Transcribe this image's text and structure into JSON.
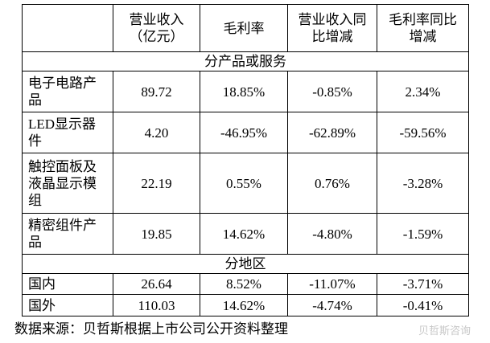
{
  "table": {
    "header": [
      "营业收入（亿元）",
      "毛利率",
      "营业收入同比增减",
      "毛利率同比增减"
    ],
    "rows": [
      [
        "分产品或服务"
      ],
      [
        "电子电路产品",
        "89.72",
        "18.85%",
        "-0.85%",
        "2.34%"
      ],
      [
        "LED显示器件",
        "4.20",
        "-46.95%",
        "-62.89%",
        "-59.56%"
      ],
      [
        "触控面板及液晶显示模组",
        "22.19",
        "0.55%",
        "0.76%",
        "-3.28%"
      ],
      [
        "精密组件产品",
        "19.85",
        "14.62%",
        "-4.80%",
        "-1.59%"
      ],
      [
        "分地区"
      ],
      [
        "国内",
        "26.64",
        "8.52%",
        "-11.07%",
        "-3.71%"
      ],
      [
        "国外",
        "110.03",
        "14.62%",
        "-4.74%",
        "-0.41%"
      ]
    ]
  },
  "footer": {
    "source": "数据来源：贝哲斯根据上市公司公开资料整理",
    "watermark": "贝哲斯咨询"
  }
}
